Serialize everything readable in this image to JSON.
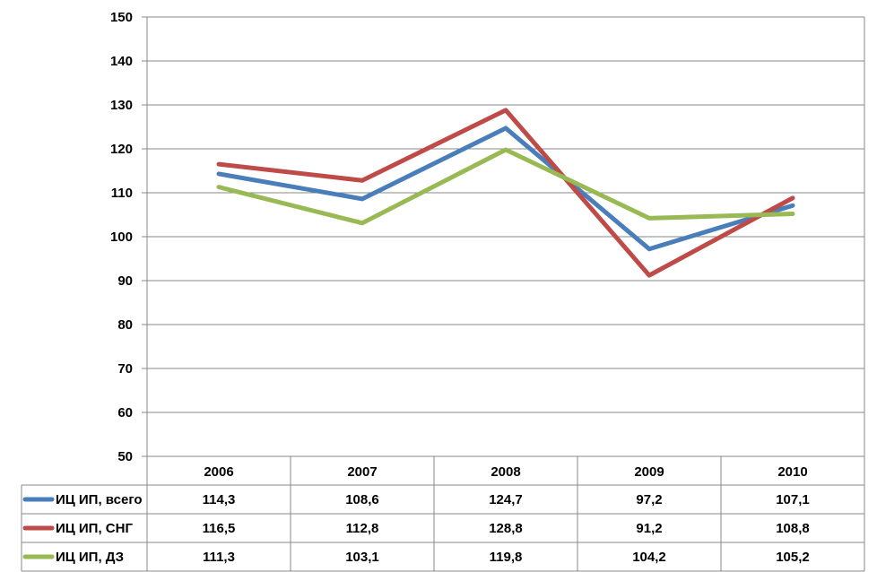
{
  "chart_data": {
    "type": "line",
    "title": "",
    "xlabel": "",
    "ylabel": "",
    "categories": [
      "2006",
      "2007",
      "2008",
      "2009",
      "2010"
    ],
    "series": [
      {
        "name": "ИЦ ИП, всего",
        "values": [
          114.3,
          108.6,
          124.7,
          97.2,
          107.1
        ],
        "color": "#4a7ebb",
        "labels": [
          "114,3",
          "108,6",
          "124,7",
          "97,2",
          "107,1"
        ]
      },
      {
        "name": "ИЦ ИП, СНГ",
        "values": [
          116.5,
          112.8,
          128.8,
          91.2,
          108.8
        ],
        "color": "#be4b48",
        "labels": [
          "116,5",
          "112,8",
          "128,8",
          "91,2",
          "108,8"
        ]
      },
      {
        "name": "ИЦ ИП, ДЗ",
        "values": [
          111.3,
          103.1,
          119.8,
          104.2,
          105.2
        ],
        "color": "#98b954",
        "labels": [
          "111,3",
          "103,1",
          "119,8",
          "104,2",
          "105,2"
        ]
      }
    ],
    "ylim": [
      50,
      150
    ],
    "yticks": [
      50,
      60,
      70,
      80,
      90,
      100,
      110,
      120,
      130,
      140,
      150
    ],
    "grid": true,
    "legend": "data-table-left"
  }
}
